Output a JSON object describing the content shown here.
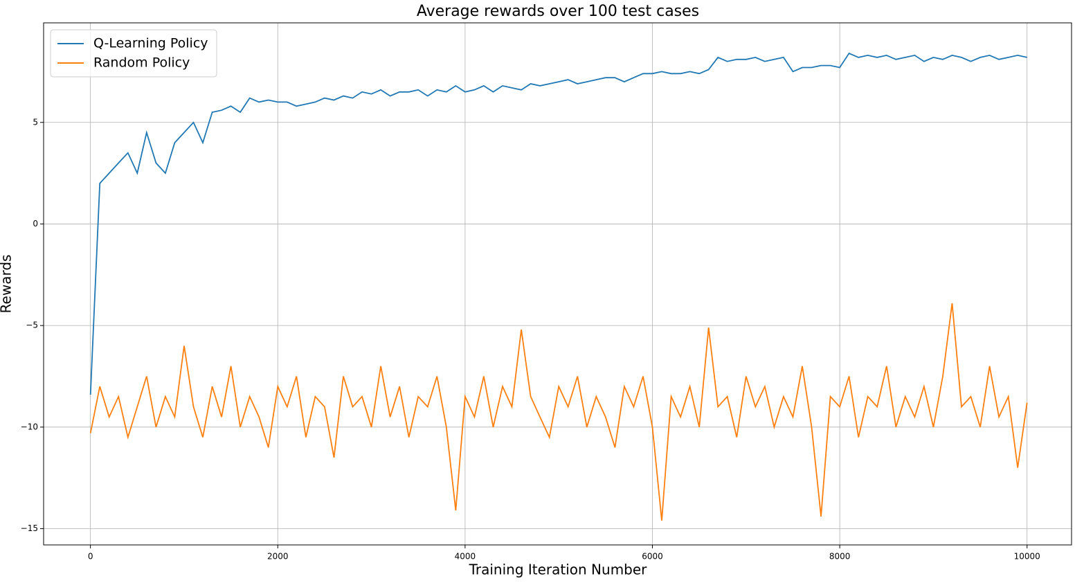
{
  "chart_data": {
    "type": "line",
    "title": "Average rewards over 100 test cases",
    "x_label": "Training Iteration Number",
    "y_label": "Rewards",
    "x": [
      0,
      100,
      200,
      300,
      400,
      500,
      600,
      700,
      800,
      900,
      1000,
      1100,
      1200,
      1300,
      1400,
      1500,
      1600,
      1700,
      1800,
      1900,
      2000,
      2100,
      2200,
      2300,
      2400,
      2500,
      2600,
      2700,
      2800,
      2900,
      3000,
      3100,
      3200,
      3300,
      3400,
      3500,
      3600,
      3700,
      3800,
      3900,
      4000,
      4100,
      4200,
      4300,
      4400,
      4500,
      4600,
      4700,
      4800,
      4900,
      5000,
      5100,
      5200,
      5300,
      5400,
      5500,
      5600,
      5700,
      5800,
      5900,
      6000,
      6100,
      6200,
      6300,
      6400,
      6500,
      6600,
      6700,
      6800,
      6900,
      7000,
      7100,
      7200,
      7300,
      7400,
      7500,
      7600,
      7700,
      7800,
      7900,
      8000,
      8100,
      8200,
      8300,
      8400,
      8500,
      8600,
      8700,
      8800,
      8900,
      9000,
      9100,
      9200,
      9300,
      9400,
      9500,
      9600,
      9700,
      9800,
      9900,
      10000
    ],
    "series": [
      {
        "name": "Q-Learning Policy",
        "color": "#1f77b4",
        "values": [
          -8.4,
          2.0,
          2.5,
          3.0,
          3.5,
          2.5,
          4.5,
          3.0,
          2.5,
          4.0,
          4.5,
          5.0,
          4.0,
          5.5,
          5.6,
          5.8,
          5.5,
          6.2,
          6.0,
          6.1,
          6.0,
          6.0,
          5.8,
          5.9,
          6.0,
          6.2,
          6.1,
          6.3,
          6.2,
          6.5,
          6.4,
          6.6,
          6.3,
          6.5,
          6.5,
          6.6,
          6.3,
          6.6,
          6.5,
          6.8,
          6.5,
          6.6,
          6.8,
          6.5,
          6.8,
          6.7,
          6.6,
          6.9,
          6.8,
          6.9,
          7.0,
          7.1,
          6.9,
          7.0,
          7.1,
          7.2,
          7.2,
          7.0,
          7.2,
          7.4,
          7.4,
          7.5,
          7.4,
          7.4,
          7.5,
          7.4,
          7.6,
          8.2,
          8.0,
          8.1,
          8.1,
          8.2,
          8.0,
          8.1,
          8.2,
          7.5,
          7.7,
          7.7,
          7.8,
          7.8,
          7.7,
          8.4,
          8.2,
          8.3,
          8.2,
          8.3,
          8.1,
          8.2,
          8.3,
          8.0,
          8.2,
          8.1,
          8.3,
          8.2,
          8.0,
          8.2,
          8.3,
          8.1,
          8.2,
          8.3,
          8.2
        ]
      },
      {
        "name": "Random Policy",
        "color": "#ff7f0e",
        "values": [
          -10.3,
          -8.0,
          -9.5,
          -8.5,
          -10.5,
          -9.0,
          -7.5,
          -10.0,
          -8.5,
          -9.5,
          -6.0,
          -9.0,
          -10.5,
          -8.0,
          -9.5,
          -7.0,
          -10.0,
          -8.5,
          -9.5,
          -11.0,
          -8.0,
          -9.0,
          -7.5,
          -10.5,
          -8.5,
          -9.0,
          -11.5,
          -7.5,
          -9.0,
          -8.5,
          -10.0,
          -7.0,
          -9.5,
          -8.0,
          -10.5,
          -8.5,
          -9.0,
          -7.5,
          -10.0,
          -14.1,
          -8.5,
          -9.5,
          -7.5,
          -10.0,
          -8.0,
          -9.0,
          -5.2,
          -8.5,
          -9.5,
          -10.5,
          -8.0,
          -9.0,
          -7.5,
          -10.0,
          -8.5,
          -9.5,
          -11.0,
          -8.0,
          -9.0,
          -7.5,
          -10.0,
          -14.6,
          -8.5,
          -9.5,
          -8.0,
          -10.0,
          -5.1,
          -9.0,
          -8.5,
          -10.5,
          -7.5,
          -9.0,
          -8.0,
          -10.0,
          -8.5,
          -9.5,
          -7.0,
          -10.0,
          -14.4,
          -8.5,
          -9.0,
          -7.5,
          -10.5,
          -8.5,
          -9.0,
          -7.0,
          -10.0,
          -8.5,
          -9.5,
          -8.0,
          -10.0,
          -7.5,
          -3.9,
          -9.0,
          -8.5,
          -10.0,
          -7.0,
          -9.5,
          -8.5,
          -12.0,
          -8.8
        ]
      }
    ],
    "xlim": [
      -500,
      10475
    ],
    "ylim": [
      -15.8,
      9.9
    ],
    "xticks": [
      0,
      2000,
      4000,
      6000,
      8000,
      10000
    ],
    "yticks": [
      {
        "value": -15,
        "label": "−15"
      },
      {
        "value": -10,
        "label": "−10"
      },
      {
        "value": -5,
        "label": "−5"
      },
      0,
      5
    ],
    "grid": true,
    "legend": "upper left"
  }
}
